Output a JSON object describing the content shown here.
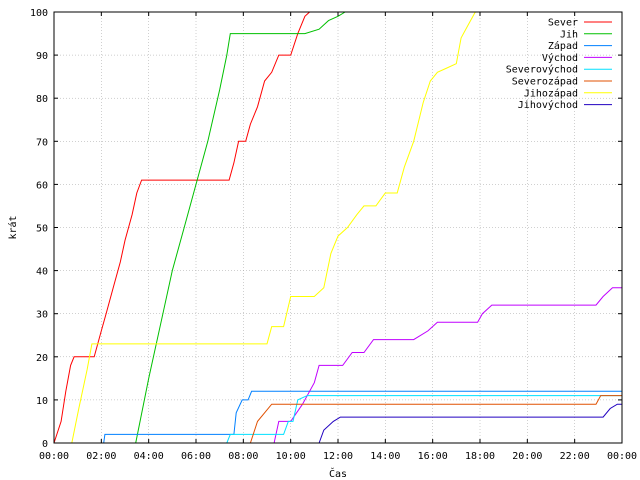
{
  "chart_data": {
    "type": "line",
    "title": "",
    "xlabel": "Čas",
    "ylabel": "krát",
    "xlim": [
      0,
      24
    ],
    "ylim": [
      0,
      100
    ],
    "grid": true,
    "legend_position": "top-right",
    "x_tick_labels": [
      "00:00",
      "02:00",
      "04:00",
      "06:00",
      "08:00",
      "10:00",
      "12:00",
      "14:00",
      "16:00",
      "18:00",
      "20:00",
      "22:00",
      "00:00"
    ],
    "y_tick_labels": [
      "0",
      "10",
      "20",
      "30",
      "40",
      "50",
      "60",
      "70",
      "80",
      "90",
      "100"
    ],
    "series": [
      {
        "name": "Sever",
        "color": "#ff0000",
        "points": [
          [
            0,
            0
          ],
          [
            0.3,
            5
          ],
          [
            0.5,
            12
          ],
          [
            0.7,
            18
          ],
          [
            0.85,
            20
          ],
          [
            1.7,
            20
          ],
          [
            2.0,
            26
          ],
          [
            2.2,
            30
          ],
          [
            2.5,
            36
          ],
          [
            2.8,
            42
          ],
          [
            3.0,
            47
          ],
          [
            3.3,
            53
          ],
          [
            3.5,
            58
          ],
          [
            3.7,
            61
          ],
          [
            7.4,
            61
          ],
          [
            7.6,
            65
          ],
          [
            7.8,
            70
          ],
          [
            8.1,
            70
          ],
          [
            8.3,
            74
          ],
          [
            8.6,
            78
          ],
          [
            8.9,
            84
          ],
          [
            9.2,
            86
          ],
          [
            9.5,
            90
          ],
          [
            10.0,
            90
          ],
          [
            10.3,
            95
          ],
          [
            10.6,
            99
          ],
          [
            10.8,
            100
          ]
        ]
      },
      {
        "name": "Jih",
        "color": "#00c000",
        "points": [
          [
            3.45,
            0
          ],
          [
            4.0,
            15
          ],
          [
            4.6,
            30
          ],
          [
            5.0,
            40
          ],
          [
            5.5,
            50
          ],
          [
            6.0,
            60
          ],
          [
            6.5,
            70
          ],
          [
            7.0,
            82
          ],
          [
            7.3,
            90
          ],
          [
            7.45,
            95
          ],
          [
            10.6,
            95
          ],
          [
            11.2,
            96
          ],
          [
            11.6,
            98
          ],
          [
            12.0,
            99
          ],
          [
            12.3,
            100
          ]
        ]
      },
      {
        "name": "Západ",
        "color": "#0080ff",
        "points": [
          [
            0,
            0
          ],
          [
            2.1,
            0
          ],
          [
            2.15,
            2
          ],
          [
            7.6,
            2
          ],
          [
            7.7,
            7
          ],
          [
            7.95,
            10
          ],
          [
            8.2,
            10
          ],
          [
            8.35,
            12
          ],
          [
            24,
            12
          ]
        ]
      },
      {
        "name": "Východ",
        "color": "#c000ff",
        "points": [
          [
            0,
            0
          ],
          [
            9.3,
            0
          ],
          [
            9.5,
            5
          ],
          [
            10.0,
            5
          ],
          [
            10.5,
            9
          ],
          [
            11.0,
            14
          ],
          [
            11.2,
            18
          ],
          [
            12.2,
            18
          ],
          [
            12.6,
            21
          ],
          [
            13.1,
            21
          ],
          [
            13.5,
            24
          ],
          [
            15.2,
            24
          ],
          [
            15.8,
            26
          ],
          [
            16.2,
            28
          ],
          [
            17.9,
            28
          ],
          [
            18.1,
            30
          ],
          [
            18.5,
            32
          ],
          [
            22.9,
            32
          ],
          [
            23.2,
            34
          ],
          [
            23.6,
            36
          ],
          [
            24,
            36
          ]
        ]
      },
      {
        "name": "Severovýchod",
        "color": "#00e0ff",
        "points": [
          [
            0,
            0
          ],
          [
            7.3,
            0
          ],
          [
            7.45,
            2
          ],
          [
            9.7,
            2
          ],
          [
            9.9,
            5
          ],
          [
            10.1,
            5
          ],
          [
            10.3,
            10
          ],
          [
            10.7,
            11
          ],
          [
            24,
            11
          ]
        ]
      },
      {
        "name": "Severozápad",
        "color": "#e05000",
        "points": [
          [
            0,
            0
          ],
          [
            8.3,
            0
          ],
          [
            8.6,
            5
          ],
          [
            8.9,
            7
          ],
          [
            9.2,
            9
          ],
          [
            22.9,
            9
          ],
          [
            23.1,
            11
          ],
          [
            24,
            11
          ]
        ]
      },
      {
        "name": "Jihozápad",
        "color": "#ffff00",
        "points": [
          [
            0,
            0
          ],
          [
            0.75,
            0
          ],
          [
            1.05,
            8
          ],
          [
            1.4,
            17
          ],
          [
            1.6,
            23
          ],
          [
            9.0,
            23
          ],
          [
            9.2,
            27
          ],
          [
            9.7,
            27
          ],
          [
            10.0,
            34
          ],
          [
            11.0,
            34
          ],
          [
            11.4,
            36
          ],
          [
            11.7,
            44
          ],
          [
            12.0,
            48
          ],
          [
            12.4,
            50
          ],
          [
            12.8,
            53
          ],
          [
            13.1,
            55
          ],
          [
            13.6,
            55
          ],
          [
            14.0,
            58
          ],
          [
            14.5,
            58
          ],
          [
            14.8,
            64
          ],
          [
            15.2,
            70
          ],
          [
            15.6,
            79
          ],
          [
            15.9,
            84
          ],
          [
            16.2,
            86
          ],
          [
            16.6,
            87
          ],
          [
            17.0,
            88
          ],
          [
            17.2,
            94
          ],
          [
            17.5,
            97
          ],
          [
            17.8,
            100
          ]
        ]
      },
      {
        "name": "Jihovýchod",
        "color": "#2000c0",
        "points": [
          [
            0,
            0
          ],
          [
            11.2,
            0
          ],
          [
            11.4,
            3
          ],
          [
            11.8,
            5
          ],
          [
            12.1,
            6
          ],
          [
            23.2,
            6
          ],
          [
            23.5,
            8
          ],
          [
            23.8,
            9
          ],
          [
            24,
            9
          ]
        ]
      }
    ]
  }
}
